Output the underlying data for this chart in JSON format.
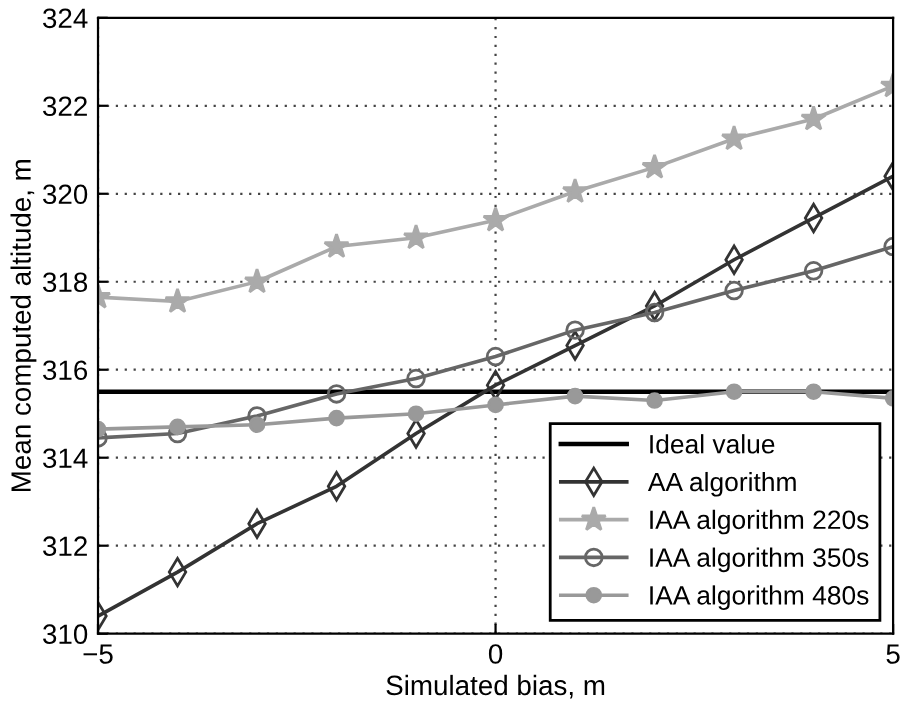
{
  "chart_data": {
    "type": "line",
    "xlabel": "Simulated bias, m",
    "ylabel": "Mean computed altitude, m",
    "x": [
      -5,
      -4,
      -3,
      -2,
      -1,
      0,
      1,
      2,
      3,
      4,
      5
    ],
    "xlim": [
      -5,
      5
    ],
    "xticks": [
      {
        "value": -5,
        "label": "−5"
      },
      0,
      5
    ],
    "ylim": [
      310,
      324
    ],
    "yticks": [
      310,
      312,
      314,
      316,
      318,
      320,
      322,
      324
    ],
    "grid": true,
    "legend": "bottom right",
    "series": [
      {
        "name": "Ideal value",
        "color": "#000000",
        "x": [
          -5,
          5
        ],
        "values": [
          315.5,
          315.5
        ],
        "marker": "none"
      },
      {
        "name": "AA algorithm",
        "color": "#333333",
        "marker": "diamond",
        "values": [
          310.4,
          311.4,
          312.5,
          313.35,
          314.55,
          315.65,
          316.55,
          317.45,
          318.5,
          319.45,
          320.4
        ]
      },
      {
        "name": "IAA algorithm 220s",
        "color": "#aaaaaa",
        "marker": "star",
        "values": [
          317.65,
          317.55,
          318.0,
          318.8,
          319.0,
          319.4,
          320.05,
          320.6,
          321.25,
          321.7,
          322.45
        ]
      },
      {
        "name": "IAA algorithm 350s",
        "color": "#666666",
        "marker": "circle",
        "values": [
          314.45,
          314.55,
          314.95,
          315.45,
          315.8,
          316.3,
          316.9,
          317.3,
          317.8,
          318.25,
          318.8
        ]
      },
      {
        "name": "IAA algorithm 480s",
        "color": "#999999",
        "marker": "filled circle",
        "values": [
          314.65,
          314.7,
          314.75,
          314.9,
          315.0,
          315.2,
          315.4,
          315.3,
          315.5,
          315.5,
          315.35
        ]
      }
    ]
  }
}
